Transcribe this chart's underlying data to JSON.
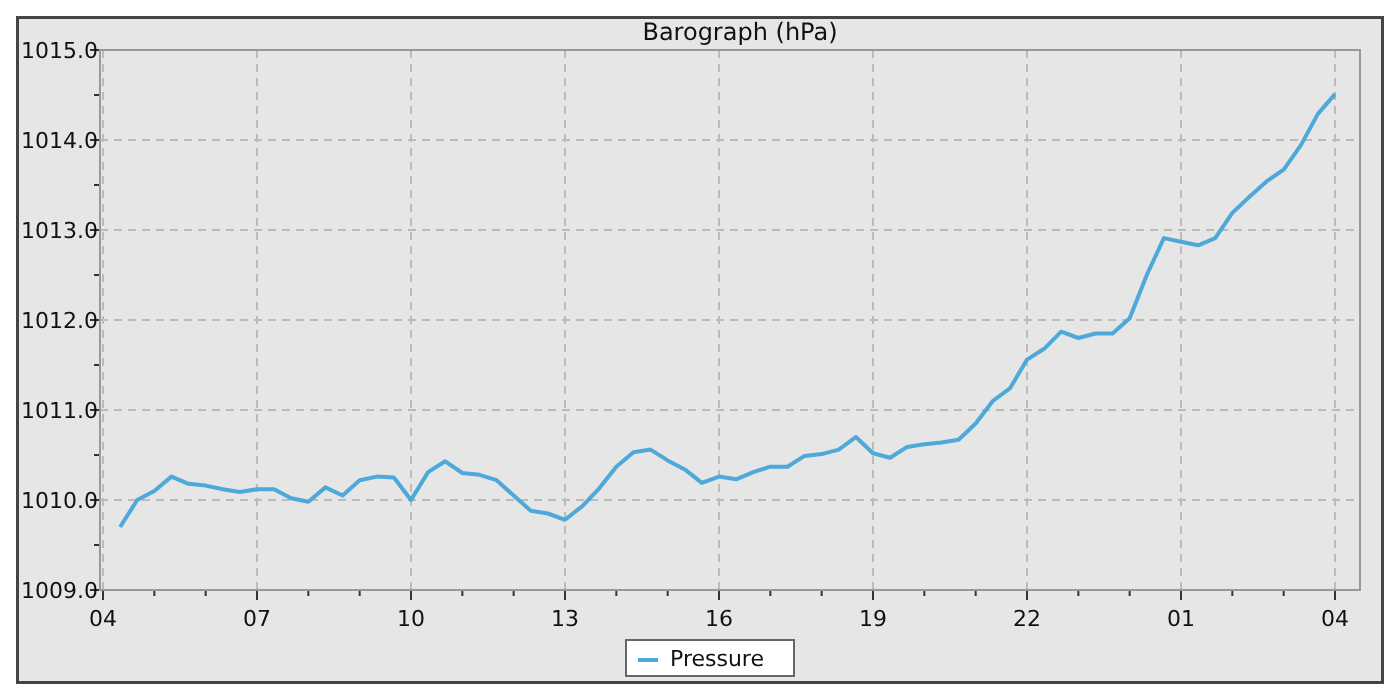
{
  "chart_data": {
    "type": "line",
    "title": "Barograph (hPa)",
    "categories": [
      "04",
      null,
      null,
      null,
      null,
      null,
      null,
      null,
      null,
      "07",
      null,
      null,
      null,
      null,
      null,
      null,
      null,
      null,
      "10",
      null,
      null,
      null,
      null,
      null,
      null,
      null,
      null,
      "13",
      null,
      null,
      null,
      null,
      null,
      null,
      null,
      null,
      "16",
      null,
      null,
      null,
      null,
      null,
      null,
      null,
      null,
      "19",
      null,
      null,
      null,
      null,
      null,
      null,
      null,
      null,
      "22",
      null,
      null,
      null,
      null,
      null,
      null,
      null,
      null,
      "01",
      null,
      null,
      null,
      null,
      null,
      null,
      null,
      null,
      "04"
    ],
    "series": [
      {
        "name": "Pressure",
        "color": "#4ea9d9",
        "values": [
          null,
          1009.7,
          1010.0,
          1010.1,
          1010.26,
          1010.18,
          1010.16,
          1010.12,
          1010.09,
          1010.12,
          1010.12,
          1010.02,
          1009.98,
          1010.14,
          1010.05,
          1010.22,
          1010.26,
          1010.25,
          1010.0,
          1010.31,
          1010.43,
          1010.3,
          1010.28,
          1010.22,
          1010.05,
          1009.88,
          1009.85,
          1009.78,
          1009.93,
          1010.13,
          1010.37,
          1010.53,
          1010.56,
          1010.44,
          1010.34,
          1010.19,
          1010.26,
          1010.23,
          1010.31,
          1010.37,
          1010.37,
          1010.49,
          1010.51,
          1010.56,
          1010.7,
          1010.52,
          1010.47,
          1010.59,
          1010.62,
          1010.64,
          1010.67,
          1010.85,
          1011.1,
          1011.24,
          1011.56,
          1011.68,
          1011.87,
          1011.8,
          1011.85,
          1011.85,
          1012.02,
          1012.5,
          1012.91,
          1012.87,
          1012.83,
          1012.91,
          1013.19,
          1013.37,
          1013.54,
          1013.67,
          1013.94,
          1014.29,
          1014.51
        ]
      }
    ],
    "ylim": [
      1009,
      1015
    ],
    "yticks": [
      {
        "value": 1009,
        "label": "1009.0"
      },
      {
        "value": 1009.5,
        "label": null
      },
      {
        "value": 1010,
        "label": "1010.0"
      },
      {
        "value": 1010.5,
        "label": null
      },
      {
        "value": 1011,
        "label": "1011.0"
      },
      {
        "value": 1011.5,
        "label": null
      },
      {
        "value": 1012,
        "label": "1012.0"
      },
      {
        "value": 1012.5,
        "label": null
      },
      {
        "value": 1013,
        "label": "1013.0"
      },
      {
        "value": 1013.5,
        "label": null
      },
      {
        "value": 1014,
        "label": "1014.0"
      },
      {
        "value": 1014.5,
        "label": null
      },
      {
        "value": 1015,
        "label": "1015.0"
      }
    ],
    "grid": true,
    "legend": "bottom",
    "marker": "none",
    "line_style": "solid"
  }
}
